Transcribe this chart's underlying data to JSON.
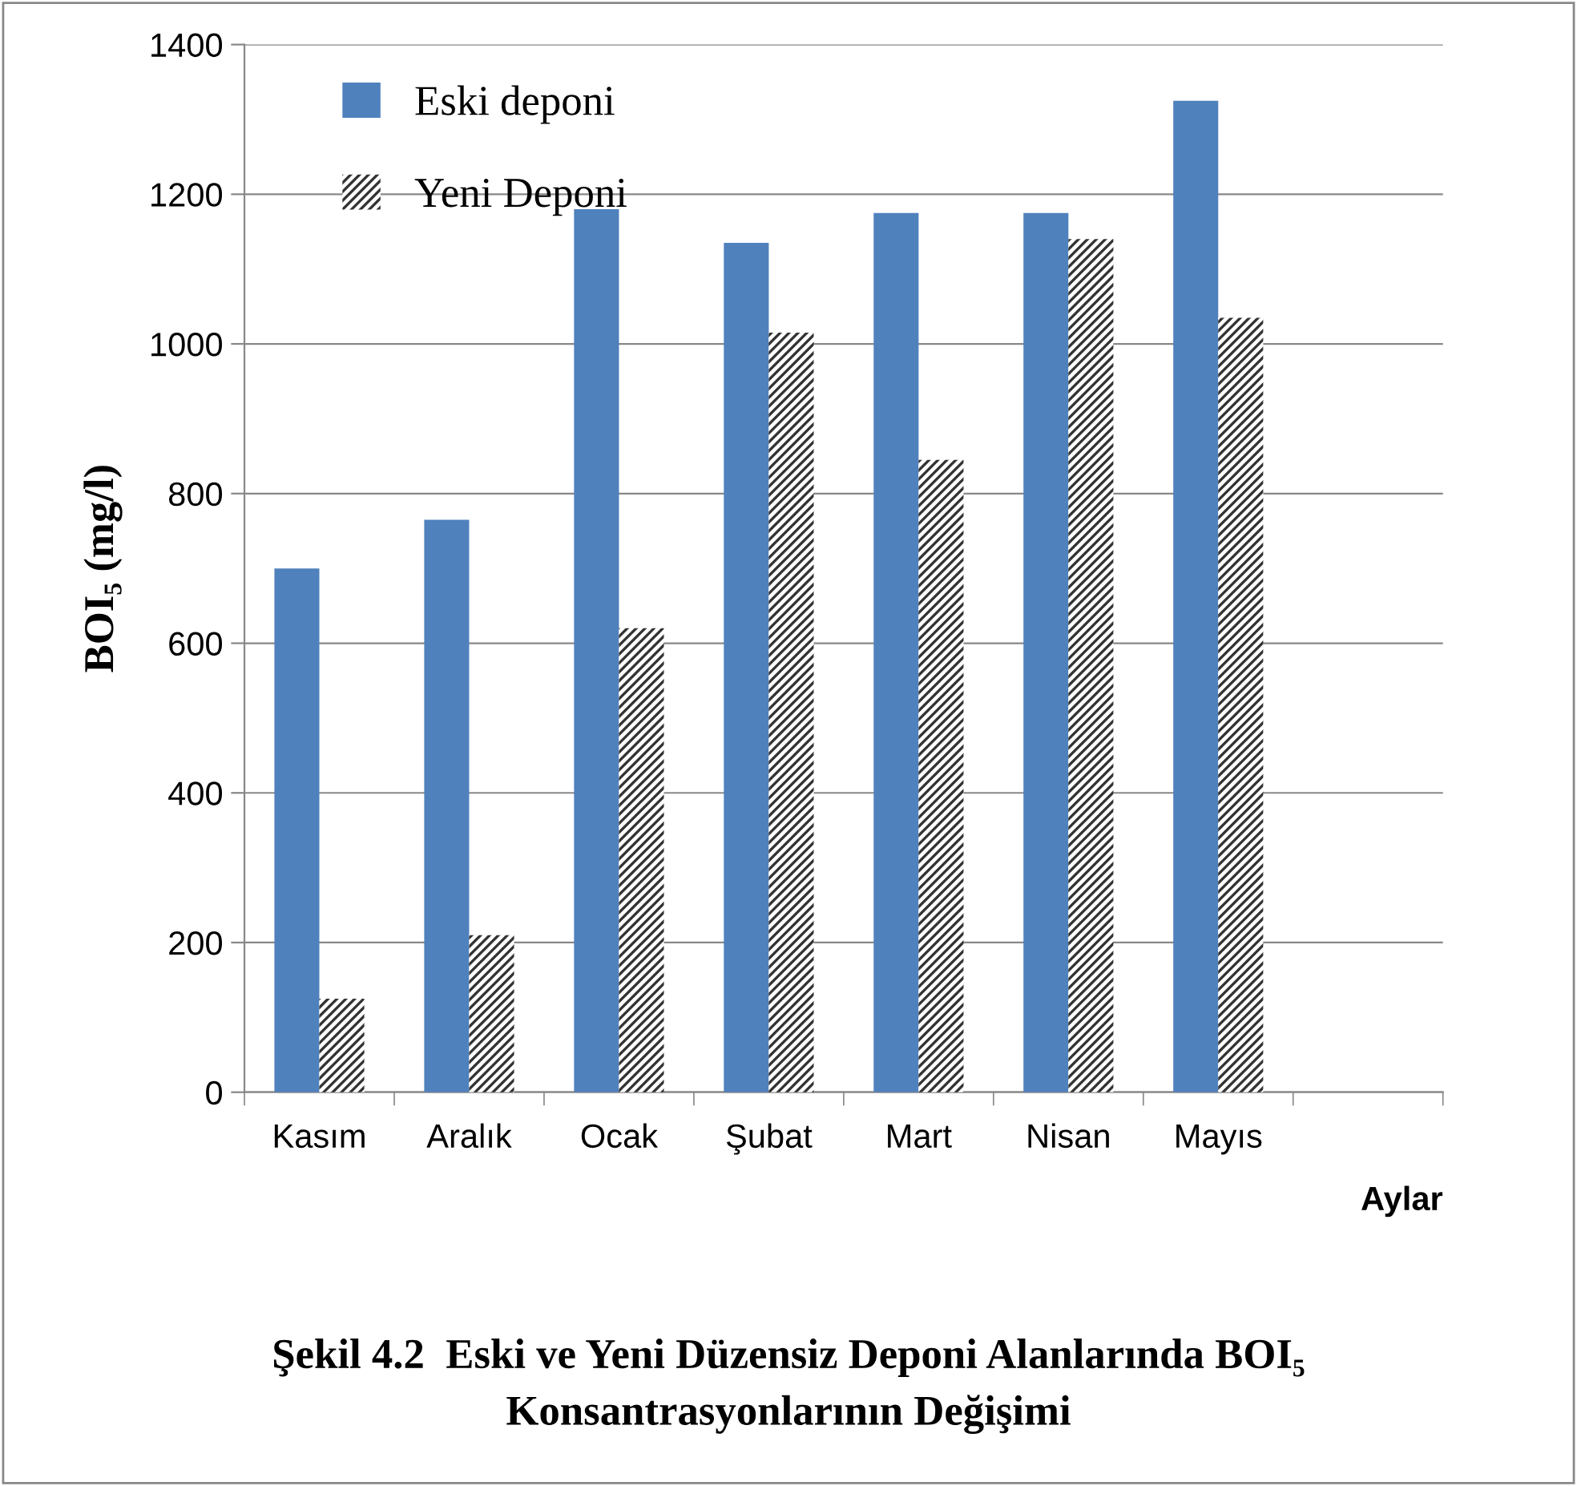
{
  "chart_data": {
    "type": "bar",
    "title": "Şekil 4.2  Eski ve Yeni Düzensiz Deponi Alanlarında BOI₅\nKonsantrasyonlarının Değişimi",
    "xlabel": "Aylar",
    "ylabel": "BOI₅ (mg/l)",
    "categories": [
      "Kasım",
      "Aralık",
      "Ocak",
      "Şubat",
      "Mart",
      "Nisan",
      "Mayıs",
      null
    ],
    "series": [
      {
        "name": "Eski deponi",
        "color": "#4f81bd",
        "values": [
          700,
          765,
          1180,
          1135,
          1175,
          1175,
          1325,
          null
        ]
      },
      {
        "name": "Yeni Deponi",
        "color": "#333333",
        "values": [
          125,
          210,
          620,
          1015,
          845,
          1140,
          1035,
          null
        ]
      }
    ],
    "ylim": [
      0,
      1400
    ],
    "yticks": [
      0,
      200,
      400,
      600,
      800,
      1000,
      1200,
      1400
    ],
    "grid": "y",
    "legend": "top left"
  }
}
